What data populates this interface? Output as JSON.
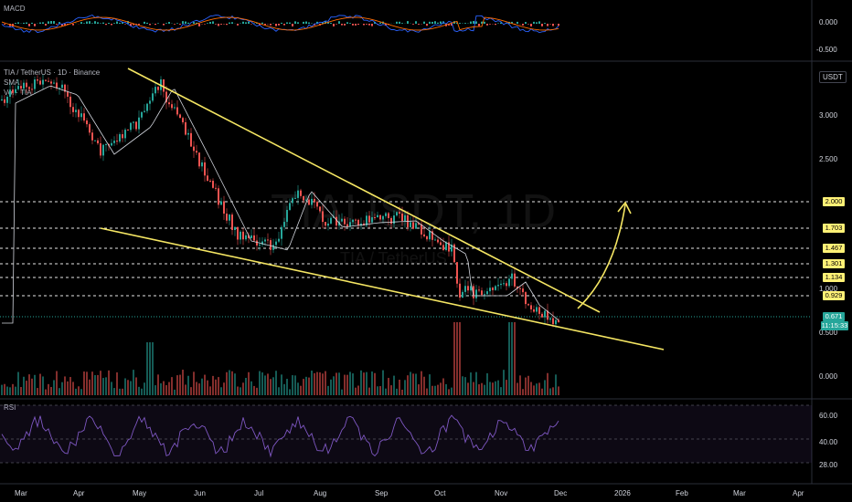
{
  "macd": {
    "title": "MACD",
    "ticks": [
      "0.000",
      "-0.500"
    ]
  },
  "main": {
    "symbol_line": "TIA / TetherUS · 1D · Binance",
    "sma_label": "SMA",
    "vol_label": "Vol · TIA",
    "currency": "USDT",
    "watermark": "TIAUSDT, 1D",
    "watermark_sub": "TIA / TetherUS",
    "price_ticks": [
      "3.000",
      "2.500",
      "1.000",
      "0.500",
      "0.000"
    ],
    "level_tags": [
      "2.000",
      "1.703",
      "1.467",
      "1.301",
      "1.134",
      "0.929"
    ],
    "current_price": "0.671",
    "countdown": "11:15:33",
    "colors": {
      "up": "#26a69a",
      "down": "#ef5350",
      "trendline": "#f5e663",
      "level_tag_bg": "#fff176",
      "current_bg": "#26a69a"
    }
  },
  "rsi": {
    "title": "RSI",
    "ticks": [
      "60.00",
      "40.00",
      "28.00"
    ]
  },
  "time_axis": [
    "Mar",
    "Apr",
    "May",
    "Jun",
    "Jul",
    "Aug",
    "Sep",
    "Oct",
    "Nov",
    "Dec",
    "2026",
    "Feb",
    "Mar",
    "Apr"
  ]
}
